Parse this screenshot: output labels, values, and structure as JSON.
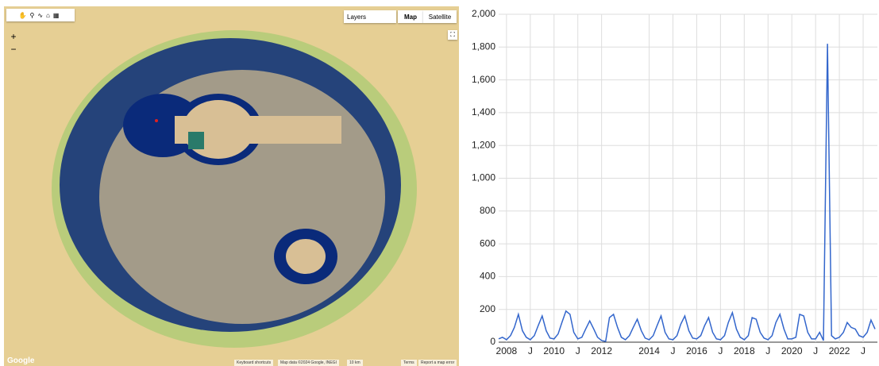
{
  "map": {
    "layers": "Layers",
    "map_button": "Map",
    "satellite_button": "Satellite",
    "zoom_in": "+",
    "zoom_out": "−",
    "logo": "Google",
    "shortcuts": "Keyboard shortcuts",
    "map_data": "Map data ©2024 Google, INEGI",
    "scale": "10 km",
    "terms": "Terms",
    "report": "Report a map error"
  },
  "chart_data": {
    "type": "line",
    "x": [
      2007.67,
      2007.83,
      2008.0,
      2008.17,
      2008.33,
      2008.5,
      2008.67,
      2008.83,
      2009.0,
      2009.17,
      2009.33,
      2009.5,
      2009.67,
      2009.83,
      2010.0,
      2010.17,
      2010.33,
      2010.5,
      2010.67,
      2010.83,
      2011.0,
      2011.17,
      2011.33,
      2011.5,
      2011.67,
      2011.83,
      2012.0,
      2012.17,
      2012.33,
      2012.5,
      2012.67,
      2012.83,
      2013.0,
      2013.17,
      2013.33,
      2013.5,
      2013.67,
      2013.83,
      2014.0,
      2014.17,
      2014.33,
      2014.5,
      2014.67,
      2014.83,
      2015.0,
      2015.17,
      2015.33,
      2015.5,
      2015.67,
      2015.83,
      2016.0,
      2016.17,
      2016.33,
      2016.5,
      2016.67,
      2016.83,
      2017.0,
      2017.17,
      2017.33,
      2017.5,
      2017.67,
      2017.83,
      2018.0,
      2018.17,
      2018.33,
      2018.5,
      2018.67,
      2018.83,
      2019.0,
      2019.17,
      2019.33,
      2019.5,
      2019.67,
      2019.83,
      2020.0,
      2020.17,
      2020.33,
      2020.5,
      2020.67,
      2020.83,
      2021.0,
      2021.17,
      2021.33,
      2021.5,
      2021.67,
      2021.83,
      2022.0,
      2022.17,
      2022.33,
      2022.5,
      2022.67,
      2022.83,
      2023.0,
      2023.17,
      2023.33,
      2023.5
    ],
    "series": [
      {
        "color": "#3366cc",
        "values": [
          20,
          30,
          15,
          40,
          90,
          170,
          70,
          30,
          15,
          40,
          100,
          160,
          70,
          25,
          20,
          50,
          120,
          190,
          170,
          60,
          20,
          30,
          80,
          130,
          80,
          30,
          10,
          5,
          150,
          170,
          90,
          30,
          15,
          40,
          90,
          140,
          70,
          25,
          15,
          40,
          100,
          160,
          60,
          20,
          15,
          40,
          110,
          160,
          70,
          25,
          20,
          40,
          100,
          150,
          60,
          20,
          15,
          40,
          120,
          180,
          80,
          30,
          15,
          40,
          150,
          140,
          60,
          25,
          15,
          40,
          120,
          170,
          80,
          20,
          20,
          30,
          170,
          160,
          60,
          20,
          20,
          60,
          10,
          1820,
          40,
          20,
          30,
          60,
          120,
          90,
          80,
          40,
          30,
          60,
          135,
          80
        ]
      }
    ],
    "xlim": [
      2007.67,
      2023.6
    ],
    "xticks": [
      2008,
      {
        "value": 2009,
        "label": "J"
      },
      2010,
      {
        "value": 2011,
        "label": "J"
      },
      2012,
      2014,
      {
        "value": 2015,
        "label": "J"
      },
      2016,
      {
        "value": 2017,
        "label": "J"
      },
      2018,
      {
        "value": 2019,
        "label": "J"
      },
      2020,
      {
        "value": 2021,
        "label": "J"
      },
      2022,
      {
        "value": 2023,
        "label": "J"
      }
    ],
    "ylim": [
      0,
      2000
    ],
    "yticks": [
      0,
      200,
      400,
      600,
      800,
      {
        "value": 1000,
        "label": "1,000"
      },
      {
        "value": 1200,
        "label": "1,200"
      },
      {
        "value": 1400,
        "label": "1,400"
      },
      {
        "value": 1600,
        "label": "1,600"
      },
      {
        "value": 1800,
        "label": "1,800"
      },
      {
        "value": 2000,
        "label": "2,000"
      }
    ],
    "grid": true
  }
}
